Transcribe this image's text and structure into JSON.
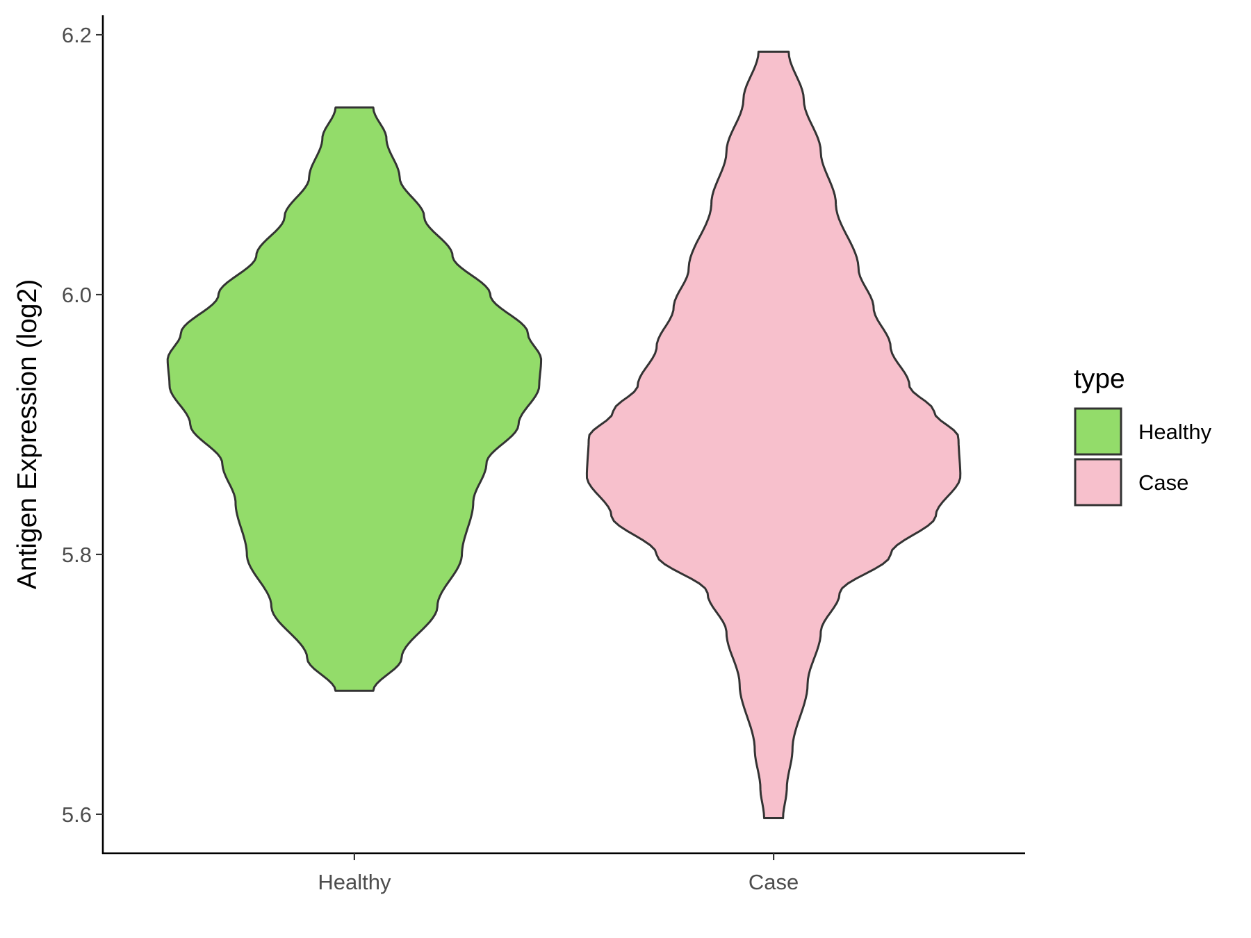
{
  "chart_data": {
    "type": "violin",
    "title": "",
    "xlabel": "",
    "ylabel": "Antigen Expression (log2)",
    "ylim": [
      5.57,
      6.215
    ],
    "yticks": [
      5.6,
      5.8,
      6.0,
      6.2
    ],
    "ytick_labels": [
      "5.6",
      "5.8",
      "6.0",
      "6.2"
    ],
    "categories": [
      "Healthy",
      "Case"
    ],
    "grid": false,
    "legend": {
      "title": "type",
      "position": "right",
      "entries": [
        "Healthy",
        "Case"
      ]
    },
    "series": [
      {
        "name": "Healthy",
        "color": "#93DC6A",
        "min": 5.695,
        "max": 6.144,
        "profile": [
          [
            5.695,
            0.1
          ],
          [
            5.72,
            0.25
          ],
          [
            5.76,
            0.44
          ],
          [
            5.8,
            0.57
          ],
          [
            5.84,
            0.63
          ],
          [
            5.87,
            0.7
          ],
          [
            5.9,
            0.87
          ],
          [
            5.93,
            0.98
          ],
          [
            5.95,
            0.99
          ],
          [
            5.97,
            0.92
          ],
          [
            6.0,
            0.72
          ],
          [
            6.03,
            0.52
          ],
          [
            6.06,
            0.37
          ],
          [
            6.09,
            0.24
          ],
          [
            6.12,
            0.17
          ],
          [
            6.144,
            0.1
          ]
        ]
      },
      {
        "name": "Case",
        "color": "#F7C0CC",
        "min": 5.597,
        "max": 6.187,
        "profile": [
          [
            5.597,
            0.05
          ],
          [
            5.62,
            0.07
          ],
          [
            5.65,
            0.1
          ],
          [
            5.7,
            0.18
          ],
          [
            5.74,
            0.25
          ],
          [
            5.77,
            0.35
          ],
          [
            5.8,
            0.62
          ],
          [
            5.83,
            0.86
          ],
          [
            5.86,
            0.99
          ],
          [
            5.89,
            0.98
          ],
          [
            5.91,
            0.85
          ],
          [
            5.93,
            0.72
          ],
          [
            5.96,
            0.62
          ],
          [
            5.99,
            0.53
          ],
          [
            6.02,
            0.45
          ],
          [
            6.07,
            0.33
          ],
          [
            6.11,
            0.25
          ],
          [
            6.15,
            0.16
          ],
          [
            6.187,
            0.08
          ]
        ]
      }
    ]
  }
}
